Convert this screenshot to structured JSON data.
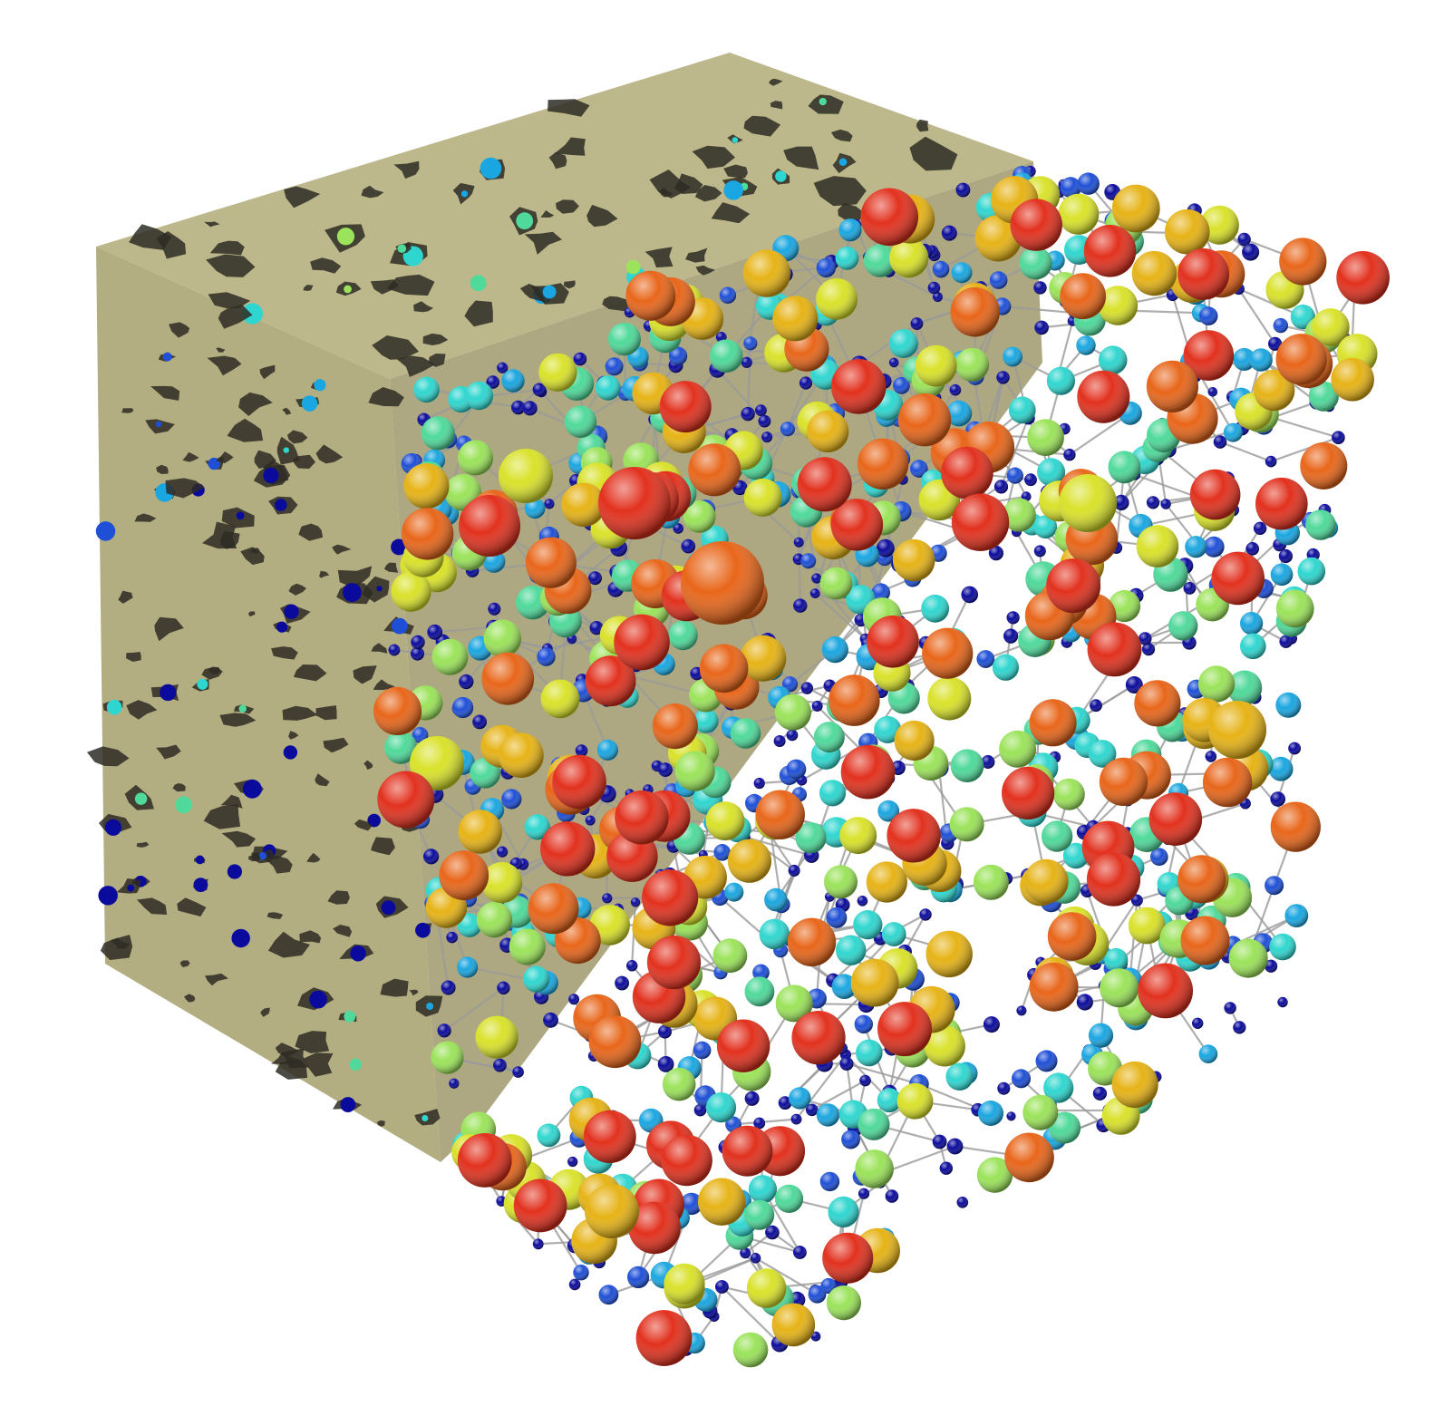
{
  "scene": {
    "colors": {
      "background": "#ffffff",
      "rock_top": "#bdb88c",
      "rock_front": "#b3ad82",
      "rock_side": "#a49e73",
      "pore_dark": "#2e2c25",
      "throat": "#9a9a9a"
    },
    "pore_size_colormap": [
      "#0a0a9c",
      "#1e4fd6",
      "#1aa6e0",
      "#2fd6cf",
      "#4fd99a",
      "#9be35a",
      "#d9e22a",
      "#e6b316",
      "#e8661a",
      "#e2311e"
    ]
  }
}
